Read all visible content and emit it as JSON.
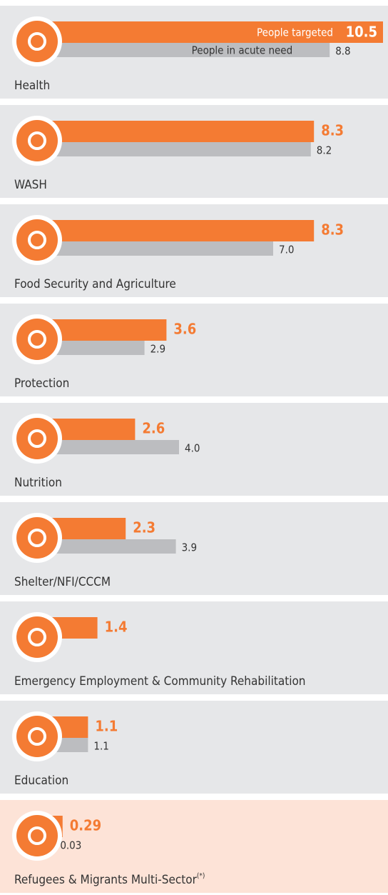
{
  "chart_data": {
    "type": "bar",
    "categories": [
      "Health",
      "WASH",
      "Food Security and Agriculture",
      "Protection",
      "Nutrition",
      "Shelter/NFI/CCCM",
      "Emergency Employment & Community Rehabilitation",
      "Education",
      "Refugees & Migrants Multi-Sector"
    ],
    "footnote_marker": "(*)",
    "series": [
      {
        "name": "People targeted",
        "color": "#f47b33",
        "values": [
          10.5,
          8.3,
          8.3,
          3.6,
          2.6,
          2.3,
          1.4,
          1.1,
          0.29
        ]
      },
      {
        "name": "People in acute need",
        "color": "#bcbdc0",
        "values": [
          8.8,
          8.2,
          7.0,
          2.9,
          4.0,
          3.9,
          null,
          1.1,
          0.03
        ],
        "value_labels": [
          "8.8",
          "8.2",
          "7.0",
          "2.9",
          "4.0",
          "3.9",
          null,
          "1.1",
          "0.03"
        ]
      }
    ]
  }
}
